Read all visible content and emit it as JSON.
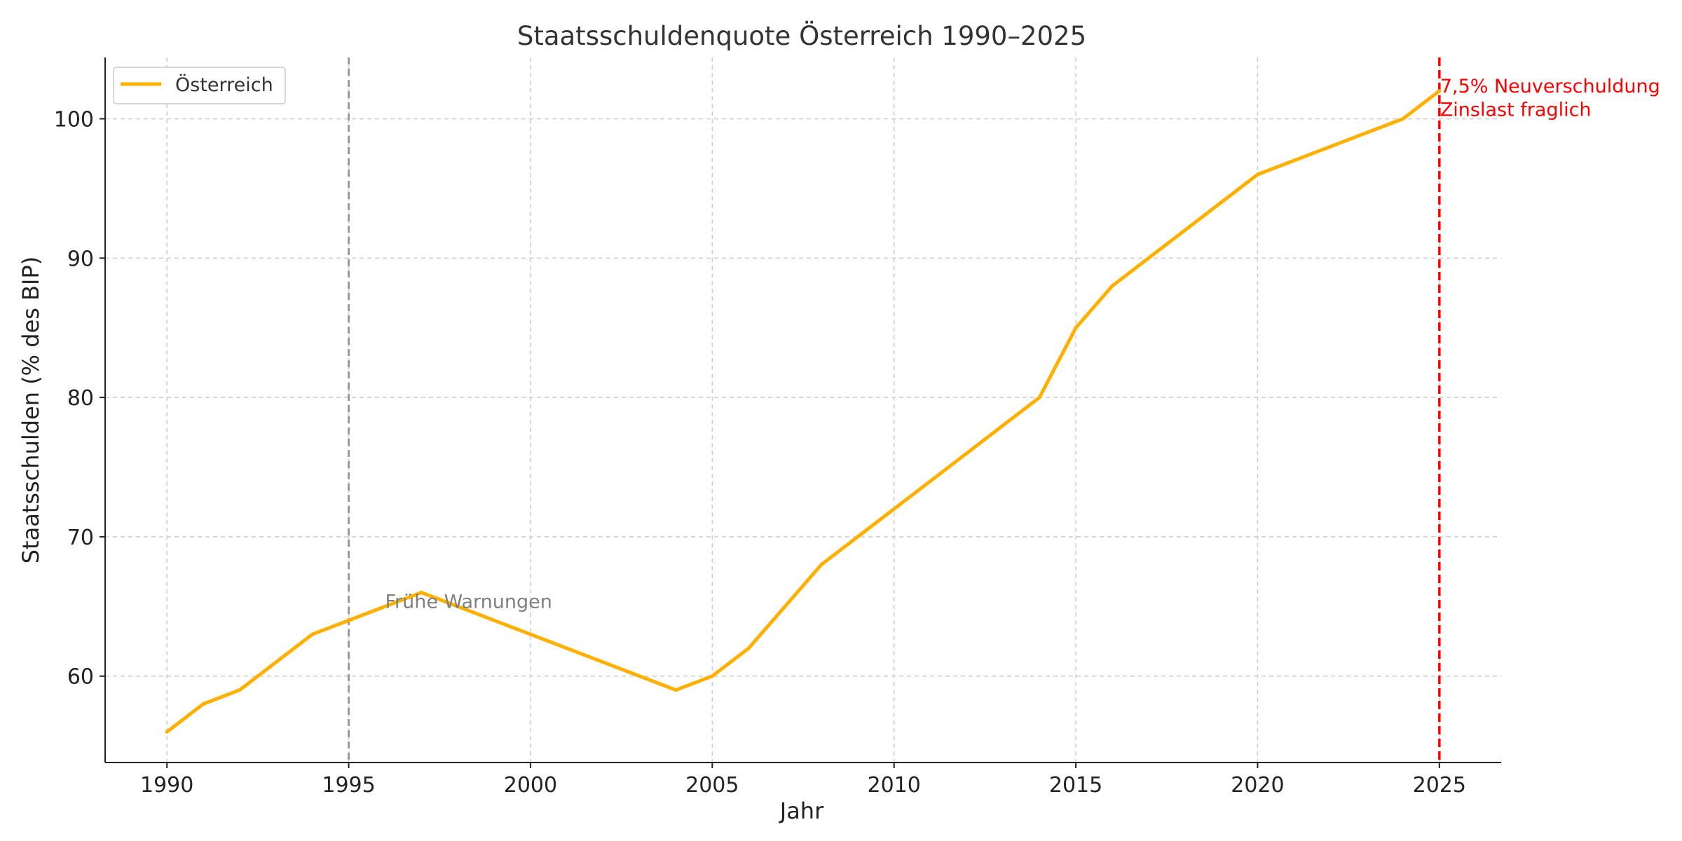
{
  "chart_data": {
    "type": "line",
    "title": "Staatsschuldenquote Österreich 1990–2025",
    "xlabel": "Jahr",
    "ylabel": "Staatsschulden (% des BIP)",
    "xlim": [
      1988.3,
      2026.7
    ],
    "ylim": [
      53.8,
      104.4
    ],
    "x_ticks": [
      1990,
      1995,
      2000,
      2005,
      2010,
      2015,
      2020,
      2025
    ],
    "y_ticks": [
      60,
      70,
      80,
      90,
      100
    ],
    "grid": true,
    "legend": {
      "position": "top-left",
      "entries": [
        "Österreich"
      ]
    },
    "series": [
      {
        "name": "Österreich",
        "color": "#FFB000",
        "x": [
          1990,
          1991,
          1992,
          1994,
          1995,
          1997,
          2000,
          2004,
          2005,
          2006,
          2008,
          2010,
          2014,
          2015,
          2016,
          2020,
          2024,
          2025
        ],
        "y": [
          56,
          58,
          59,
          63,
          64,
          66,
          63,
          59,
          60,
          62,
          68,
          72,
          80,
          85,
          88,
          96,
          100,
          102
        ]
      }
    ],
    "vertical_lines": [
      {
        "x": 1995,
        "color": "#999999",
        "style": "dashed"
      },
      {
        "x": 2025,
        "color": "#ff0000",
        "style": "dashed"
      }
    ],
    "annotations": [
      {
        "text": "Frühe Warnungen",
        "x": 1996,
        "y": 65.4,
        "color": "#808080"
      },
      {
        "text": "7,5% Neuverschuldung",
        "x": 2025,
        "y": 102.4,
        "color": "#ff0000"
      },
      {
        "text": "Zinslast fraglich",
        "x": 2025,
        "y": 100.7,
        "color": "#ff0000"
      }
    ]
  }
}
